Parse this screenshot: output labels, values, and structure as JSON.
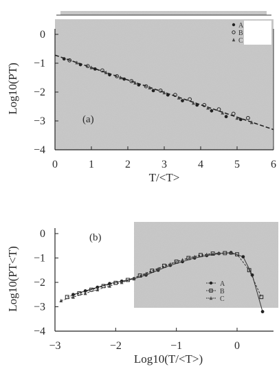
{
  "chart_data": [
    {
      "type": "scatter",
      "panel_label": "(a)",
      "xlabel": "T/<T>",
      "ylabel": "Log10(PT)",
      "xlim": [
        0,
        6
      ],
      "ylim": [
        -4,
        0
      ],
      "xticks": [
        "0",
        "1",
        "2",
        "3",
        "4",
        "5",
        "6"
      ],
      "yticks": [
        "0",
        "−1",
        "−2",
        "−3",
        "−4"
      ],
      "legend": {
        "placement": "top-right",
        "entries": [
          "A",
          "B",
          "C"
        ]
      },
      "fit_line": {
        "style": "dashed",
        "x": [
          0,
          6
        ],
        "y": [
          -0.72,
          -3.3
        ]
      },
      "series": [
        {
          "name": "A",
          "marker": "circle-filled",
          "x": [
            0.25,
            0.7,
            1.1,
            1.5,
            1.9,
            2.3,
            2.7,
            3.1,
            3.5,
            3.9,
            4.3,
            4.7,
            5.1
          ],
          "y": [
            -0.85,
            -1.05,
            -1.2,
            -1.4,
            -1.55,
            -1.75,
            -1.95,
            -2.1,
            -2.3,
            -2.45,
            -2.65,
            -2.85,
            -2.95
          ]
        },
        {
          "name": "B",
          "marker": "circle-open",
          "x": [
            0.4,
            0.9,
            1.3,
            1.7,
            2.1,
            2.5,
            2.9,
            3.3,
            3.7,
            4.1,
            4.5,
            4.9,
            5.3
          ],
          "y": [
            -0.9,
            -1.1,
            -1.25,
            -1.45,
            -1.62,
            -1.8,
            -1.95,
            -2.1,
            -2.25,
            -2.45,
            -2.6,
            -2.75,
            -2.9
          ]
        },
        {
          "name": "C",
          "marker": "triangle",
          "x": [
            0.6,
            1.0,
            1.4,
            1.8,
            2.2,
            2.6,
            3.0,
            3.4,
            3.8,
            4.2,
            4.6,
            5.0,
            5.4
          ],
          "y": [
            -0.98,
            -1.15,
            -1.32,
            -1.5,
            -1.68,
            -1.85,
            -2.02,
            -2.2,
            -2.38,
            -2.55,
            -2.72,
            -2.9,
            -3.05
          ]
        }
      ]
    },
    {
      "type": "line",
      "panel_label": "(b)",
      "xlabel": "Log10(T/<T>)",
      "ylabel": "Log10(PT<T)",
      "xlim": [
        -3,
        0.6
      ],
      "ylim": [
        -4,
        0
      ],
      "xticks": [
        "−3",
        "−2",
        "−1",
        "0"
      ],
      "yticks": [
        "0",
        "−1",
        "−2",
        "−3",
        "−4"
      ],
      "legend": {
        "placement": "bottom-right",
        "entries": [
          "A",
          "B",
          "C"
        ]
      },
      "series": [
        {
          "name": "A",
          "marker": "circle-filled",
          "x": [
            -2.7,
            -2.5,
            -2.3,
            -2.1,
            -1.9,
            -1.7,
            -1.5,
            -1.3,
            -1.1,
            -0.9,
            -0.7,
            -0.5,
            -0.3,
            -0.1,
            0.1,
            0.25,
            0.42
          ],
          "y": [
            -2.5,
            -2.35,
            -2.2,
            -2.05,
            -1.95,
            -1.85,
            -1.7,
            -1.5,
            -1.3,
            -1.15,
            -1.0,
            -0.9,
            -0.82,
            -0.78,
            -0.95,
            -1.7,
            -3.2
          ]
        },
        {
          "name": "B",
          "marker": "square",
          "x": [
            -2.8,
            -2.6,
            -2.4,
            -2.2,
            -2.0,
            -1.8,
            -1.6,
            -1.4,
            -1.2,
            -1.0,
            -0.8,
            -0.6,
            -0.4,
            -0.2,
            0.0,
            0.2,
            0.4
          ],
          "y": [
            -2.6,
            -2.45,
            -2.3,
            -2.15,
            -2.02,
            -1.9,
            -1.72,
            -1.52,
            -1.32,
            -1.15,
            -1.0,
            -0.88,
            -0.82,
            -0.8,
            -0.85,
            -1.5,
            -2.6
          ]
        },
        {
          "name": "C",
          "marker": "triangle",
          "x": [
            -2.9,
            -2.7,
            -2.5,
            -2.3,
            -2.1,
            -1.9,
            -1.7,
            -1.5,
            -1.3,
            -1.1,
            -0.9,
            -0.7,
            -0.5,
            -0.3,
            -0.1
          ],
          "y": [
            -2.75,
            -2.6,
            -2.45,
            -2.3,
            -2.15,
            -2.0,
            -1.85,
            -1.65,
            -1.45,
            -1.25,
            -1.08,
            -0.95,
            -0.86,
            -0.8,
            -0.8
          ]
        }
      ]
    }
  ]
}
